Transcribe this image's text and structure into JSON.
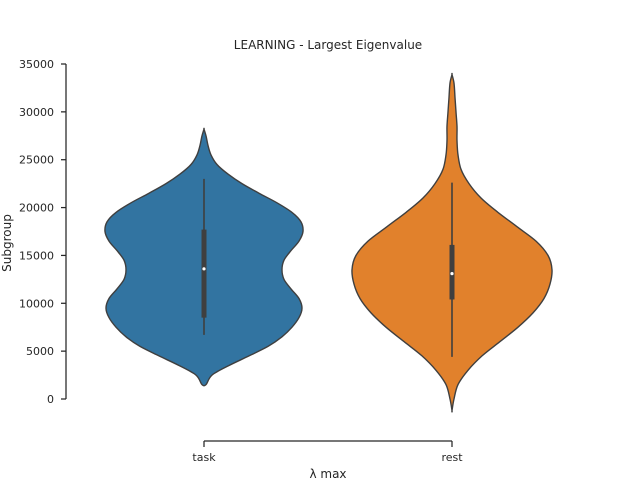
{
  "chart_data": {
    "type": "violin",
    "title": "LEARNING - Largest Eigenvalue",
    "xlabel": "λ  max",
    "ylabel": "Subgroup",
    "ylim": [
      -1500,
      35000
    ],
    "yticks": [
      0,
      5000,
      10000,
      15000,
      20000,
      25000,
      30000,
      35000
    ],
    "ytick_labels": [
      "0",
      "5000",
      "10000",
      "15000",
      "20000",
      "25000",
      "30000",
      "35000"
    ],
    "categories": [
      "task",
      "rest"
    ],
    "grid": false,
    "series": [
      {
        "category": "task",
        "color": "#3274a1",
        "range": [
          1500,
          28200
        ],
        "whisker": [
          6700,
          23000
        ],
        "iqr": [
          8500,
          17700
        ],
        "median": 13600,
        "profile": [
          [
            1500,
            0.02
          ],
          [
            2500,
            0.08
          ],
          [
            3500,
            0.25
          ],
          [
            4500,
            0.45
          ],
          [
            5500,
            0.64
          ],
          [
            6500,
            0.78
          ],
          [
            7500,
            0.88
          ],
          [
            8500,
            0.95
          ],
          [
            9500,
            0.98
          ],
          [
            10500,
            0.95
          ],
          [
            11500,
            0.87
          ],
          [
            12500,
            0.8
          ],
          [
            13500,
            0.78
          ],
          [
            14500,
            0.8
          ],
          [
            15500,
            0.87
          ],
          [
            16500,
            0.95
          ],
          [
            17500,
            0.99
          ],
          [
            18500,
            0.97
          ],
          [
            19500,
            0.88
          ],
          [
            20500,
            0.73
          ],
          [
            21500,
            0.55
          ],
          [
            22500,
            0.38
          ],
          [
            23500,
            0.24
          ],
          [
            24500,
            0.13
          ],
          [
            25500,
            0.07
          ],
          [
            26500,
            0.04
          ],
          [
            27500,
            0.02
          ],
          [
            28200,
            0.0
          ]
        ]
      },
      {
        "category": "rest",
        "color": "#e1812c",
        "range": [
          -1200,
          33900
        ],
        "whisker": [
          4400,
          22600
        ],
        "iqr": [
          10400,
          16100
        ],
        "median": 13100,
        "profile": [
          [
            -1200,
            0.0
          ],
          [
            0,
            0.02
          ],
          [
            1500,
            0.06
          ],
          [
            3000,
            0.16
          ],
          [
            4500,
            0.3
          ],
          [
            6000,
            0.48
          ],
          [
            7500,
            0.66
          ],
          [
            9000,
            0.81
          ],
          [
            10500,
            0.92
          ],
          [
            12000,
            0.98
          ],
          [
            13500,
            1.0
          ],
          [
            15000,
            0.96
          ],
          [
            16500,
            0.84
          ],
          [
            18000,
            0.65
          ],
          [
            19500,
            0.46
          ],
          [
            21000,
            0.29
          ],
          [
            22500,
            0.17
          ],
          [
            24000,
            0.09
          ],
          [
            25500,
            0.06
          ],
          [
            27000,
            0.05
          ],
          [
            28500,
            0.05
          ],
          [
            30000,
            0.04
          ],
          [
            31500,
            0.03
          ],
          [
            33000,
            0.02
          ],
          [
            33900,
            0.0
          ]
        ]
      }
    ]
  }
}
